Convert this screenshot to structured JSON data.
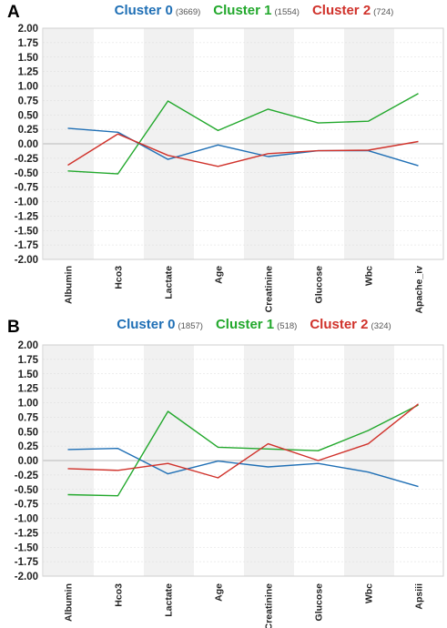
{
  "chart_data": [
    {
      "panel_label": "A",
      "type": "line",
      "categories": [
        "Albumin",
        "Hco3",
        "Lactate",
        "Age",
        "Creatinine",
        "Glucose",
        "Wbc",
        "Apache_iv"
      ],
      "ylim": [
        -2.0,
        2.0
      ],
      "ytick_labels": [
        "2.00",
        "1.75",
        "1.50",
        "1.25",
        "1.00",
        "0.75",
        "0.50",
        "0.25",
        "0.00",
        "-0.25",
        "-0.50",
        "-0.75",
        "-1.00",
        "-1.25",
        "-1.50",
        "-1.75",
        "-2.00"
      ],
      "legend_position": "top",
      "grid": true,
      "series": [
        {
          "name": "Cluster 0",
          "count": "(3669)",
          "color": "#1f6fb5",
          "values": [
            0.27,
            0.2,
            -0.27,
            -0.02,
            -0.22,
            -0.12,
            -0.12,
            -0.38
          ]
        },
        {
          "name": "Cluster 1",
          "count": "(1554)",
          "color": "#22a82c",
          "values": [
            -0.47,
            -0.52,
            0.74,
            0.23,
            0.6,
            0.36,
            0.39,
            0.87
          ]
        },
        {
          "name": "Cluster 2",
          "count": "(724)",
          "color": "#d0322b",
          "values": [
            -0.37,
            0.17,
            -0.2,
            -0.39,
            -0.17,
            -0.12,
            -0.11,
            0.04
          ]
        }
      ]
    },
    {
      "panel_label": "B",
      "type": "line",
      "categories": [
        "Albumin",
        "Hco3",
        "Lactate",
        "Age",
        "Creatinine",
        "Glucose",
        "Wbc",
        "Apsiii"
      ],
      "ylim": [
        -2.0,
        2.0
      ],
      "ytick_labels": [
        "2.00",
        "1.75",
        "1.50",
        "1.25",
        "1.00",
        "0.75",
        "0.50",
        "0.25",
        "0.00",
        "-0.25",
        "-0.50",
        "-0.75",
        "-1.00",
        "-1.25",
        "-1.50",
        "-1.75",
        "-2.00"
      ],
      "legend_position": "top",
      "grid": true,
      "series": [
        {
          "name": "Cluster 0",
          "count": "(1857)",
          "color": "#1f6fb5",
          "values": [
            0.19,
            0.21,
            -0.23,
            -0.01,
            -0.11,
            -0.05,
            -0.2,
            -0.45
          ]
        },
        {
          "name": "Cluster 1",
          "count": "(518)",
          "color": "#22a82c",
          "values": [
            -0.59,
            -0.61,
            0.85,
            0.23,
            0.2,
            0.17,
            0.52,
            0.96
          ]
        },
        {
          "name": "Cluster 2",
          "count": "(324)",
          "color": "#d0322b",
          "values": [
            -0.14,
            -0.17,
            -0.05,
            -0.3,
            0.29,
            0.0,
            0.29,
            0.98
          ]
        }
      ]
    }
  ]
}
